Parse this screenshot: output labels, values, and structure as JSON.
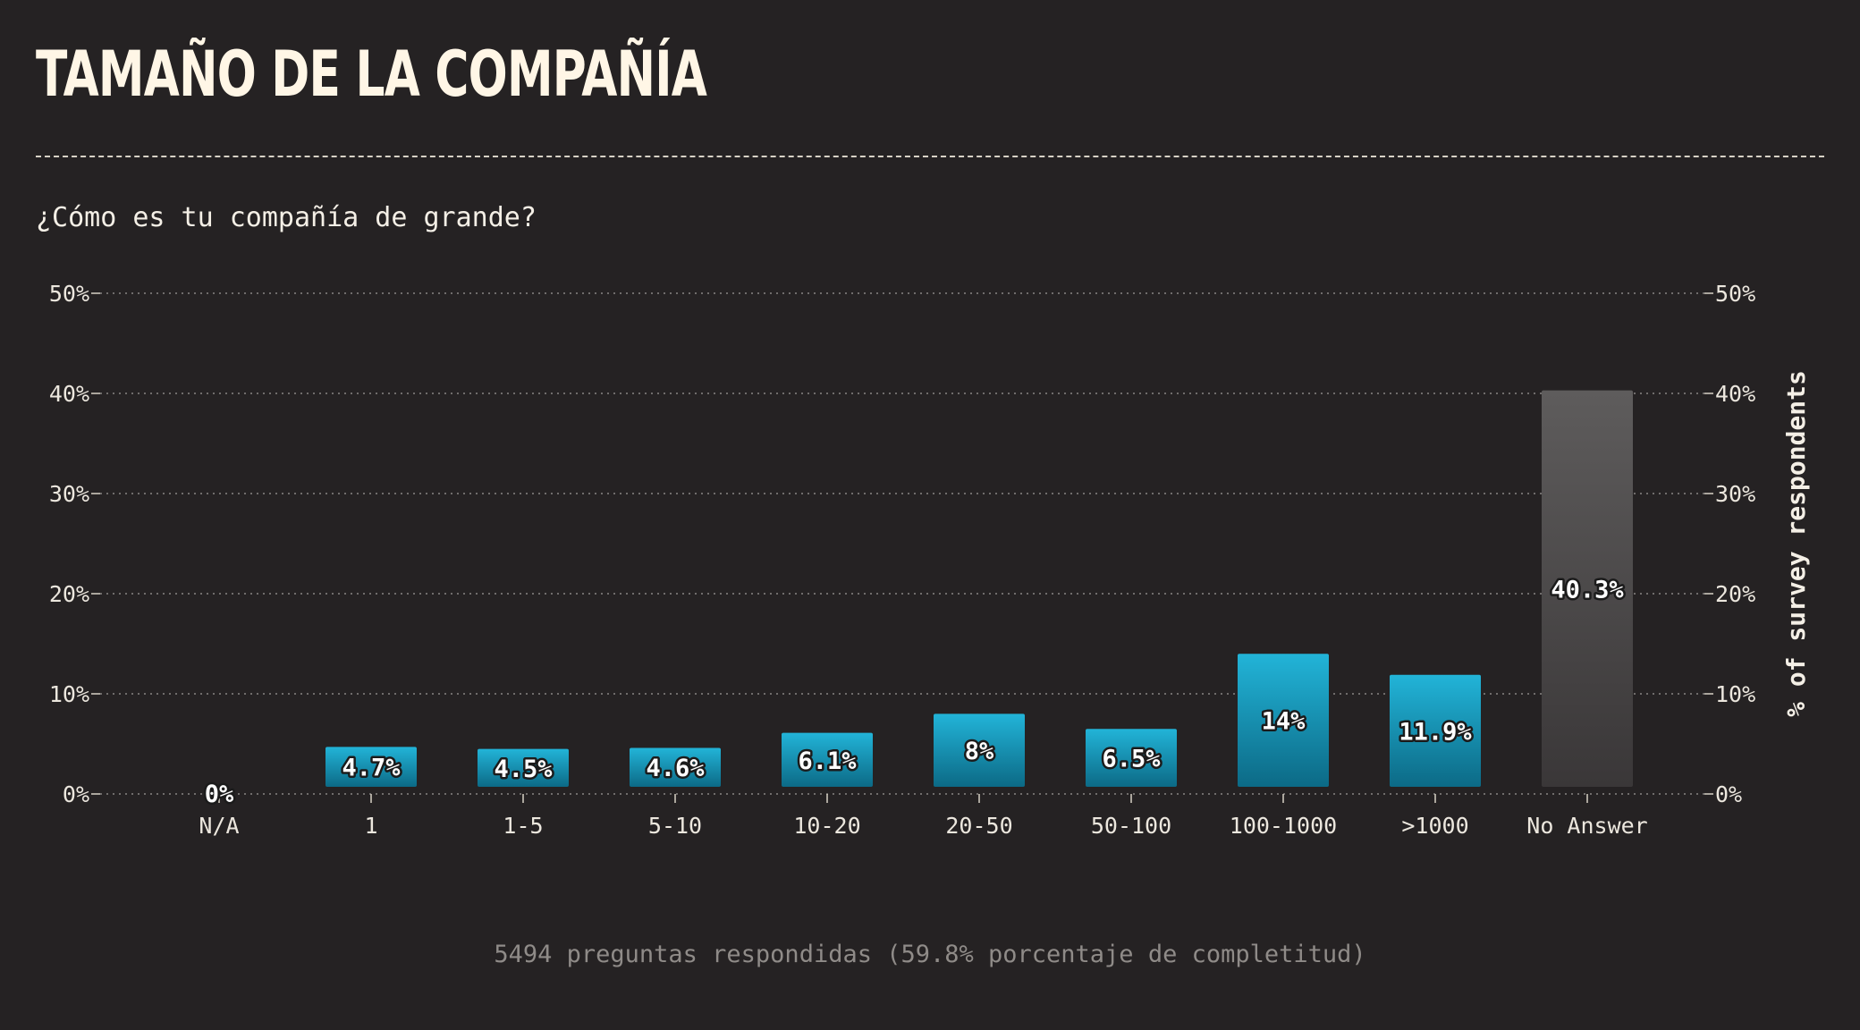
{
  "page": {
    "title": "TAMAÑO DE LA COMPAÑÍA",
    "question": "¿Cómo es tu compañía de grande?",
    "footer": "5494 preguntas respondidas (59.8% porcentaje de completitud)"
  },
  "colors": {
    "background": "#252223",
    "bar_top": "#22b4d8",
    "bar_bottom": "#0c6a86",
    "no_answer_top": "#5e5c5c",
    "no_answer_bottom": "#3a3738",
    "grid": "#8a8684",
    "text": "#f4efe6"
  },
  "chart_data": {
    "type": "bar",
    "categories": [
      "N/A",
      "1",
      "1-5",
      "5-10",
      "10-20",
      "20-50",
      "50-100",
      "100-1000",
      ">1000",
      "No Answer"
    ],
    "values": [
      0,
      4.7,
      4.5,
      4.6,
      6.1,
      8,
      6.5,
      14,
      11.9,
      40.3
    ],
    "value_labels": [
      "0%",
      "4.7%",
      "4.5%",
      "4.6%",
      "6.1%",
      "8%",
      "6.5%",
      "14%",
      "11.9%",
      "40.3%"
    ],
    "ylim": [
      0,
      50
    ],
    "yticks": [
      0,
      10,
      20,
      30,
      40,
      50
    ],
    "ytick_labels": [
      "0%",
      "10%",
      "20%",
      "30%",
      "40%",
      "50%"
    ],
    "ylabel_right": "% of survey respondents",
    "grid": true,
    "title": "TAMAÑO DE LA COMPAÑÍA",
    "subtitle": "¿Cómo es tu compañía de grande?"
  }
}
